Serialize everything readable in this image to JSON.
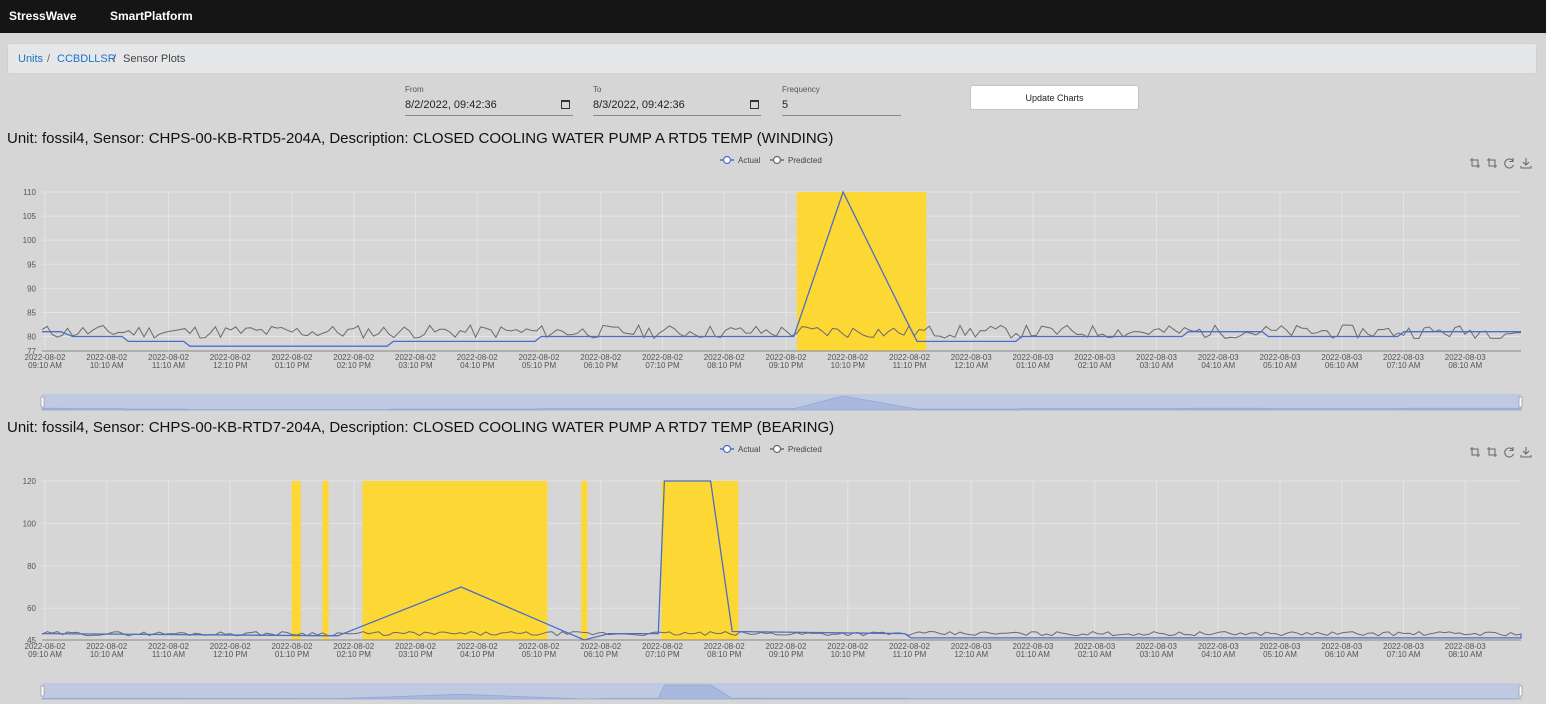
{
  "topbar": {
    "brand": "StressWave",
    "product": "SmartPlatform"
  },
  "breadcrumb": {
    "items": [
      "Units",
      "CCBDLLSR",
      "Sensor Plots"
    ],
    "separator": "/"
  },
  "form": {
    "from_label": "From",
    "from_value": "8/2/2022, 09:42:36",
    "to_label": "To",
    "to_value": "8/3/2022, 09:42:36",
    "frequency_label": "Frequency",
    "frequency_value": "5",
    "update_button": "Update Charts"
  },
  "colors": {
    "actual": "#4a6fc9",
    "predicted": "#6a6a6a",
    "highlight": "#fdd835",
    "zoom": "#b9c6e4"
  },
  "toolbox_icons": [
    "zoom-icon",
    "zoom-reset-icon",
    "restore-icon",
    "download-icon"
  ],
  "x_ticks": [
    [
      "2022-08-02",
      "09:10 AM"
    ],
    [
      "2022-08-02",
      "10:10 AM"
    ],
    [
      "2022-08-02",
      "11:10 AM"
    ],
    [
      "2022-08-02",
      "12:10 PM"
    ],
    [
      "2022-08-02",
      "01:10 PM"
    ],
    [
      "2022-08-02",
      "02:10 PM"
    ],
    [
      "2022-08-02",
      "03:10 PM"
    ],
    [
      "2022-08-02",
      "04:10 PM"
    ],
    [
      "2022-08-02",
      "05:10 PM"
    ],
    [
      "2022-08-02",
      "06:10 PM"
    ],
    [
      "2022-08-02",
      "07:10 PM"
    ],
    [
      "2022-08-02",
      "08:10 PM"
    ],
    [
      "2022-08-02",
      "09:10 PM"
    ],
    [
      "2022-08-02",
      "10:10 PM"
    ],
    [
      "2022-08-02",
      "11:10 PM"
    ],
    [
      "2022-08-03",
      "12:10 AM"
    ],
    [
      "2022-08-03",
      "01:10 AM"
    ],
    [
      "2022-08-03",
      "02:10 AM"
    ],
    [
      "2022-08-03",
      "03:10 AM"
    ],
    [
      "2022-08-03",
      "04:10 AM"
    ],
    [
      "2022-08-03",
      "05:10 AM"
    ],
    [
      "2022-08-03",
      "06:10 AM"
    ],
    [
      "2022-08-03",
      "07:10 AM"
    ],
    [
      "2022-08-03",
      "08:10 AM"
    ]
  ],
  "chart_data": [
    {
      "type": "line",
      "title": "Unit: fossil4, Sensor: CHPS-00-KB-RTD5-204A, Description: CLOSED COOLING WATER PUMP A RTD5 TEMP (WINDING)",
      "legend": [
        "Actual",
        "Predicted"
      ],
      "ylim": [
        77,
        110
      ],
      "y_ticks": [
        77,
        80,
        85,
        90,
        95,
        100,
        105,
        110
      ],
      "x_range_hours": [
        0,
        24
      ],
      "highlight_ranges": [
        [
          12.25,
          14.35
        ]
      ],
      "series": [
        {
          "name": "Actual",
          "points": [
            [
              0,
              81
            ],
            [
              0.3,
              81
            ],
            [
              0.5,
              80
            ],
            [
              1.3,
              80
            ],
            [
              1.4,
              79
            ],
            [
              2.3,
              79
            ],
            [
              2.4,
              78
            ],
            [
              5.6,
              78
            ],
            [
              5.7,
              79
            ],
            [
              8.0,
              79
            ],
            [
              8.1,
              80
            ],
            [
              12.2,
              80
            ],
            [
              13.0,
              110
            ],
            [
              14.0,
              84
            ],
            [
              14.2,
              79
            ],
            [
              15.8,
              79
            ],
            [
              15.9,
              80
            ],
            [
              18.5,
              80
            ],
            [
              18.6,
              81
            ],
            [
              19.8,
              81
            ],
            [
              19.9,
              80
            ],
            [
              22.0,
              80
            ],
            [
              22.1,
              81
            ],
            [
              24,
              81
            ]
          ]
        },
        {
          "name": "Predicted",
          "base": 81,
          "amplitude": 1.4,
          "seed": 11
        }
      ]
    },
    {
      "type": "line",
      "title": "Unit: fossil4, Sensor: CHPS-00-KB-RTD7-204A, Description: CLOSED COOLING WATER PUMP A RTD7 TEMP (BEARING)",
      "legend": [
        "Actual",
        "Predicted"
      ],
      "ylim": [
        45,
        120
      ],
      "y_ticks": [
        45,
        60,
        80,
        100,
        120
      ],
      "x_range_hours": [
        0,
        24
      ],
      "highlight_ranges": [
        [
          4.05,
          4.2
        ],
        [
          4.55,
          4.65
        ],
        [
          5.2,
          8.2
        ],
        [
          8.75,
          8.85
        ],
        [
          10.05,
          11.3
        ]
      ],
      "series": [
        {
          "name": "Actual",
          "points": [
            [
              0,
              48
            ],
            [
              4.8,
              47
            ],
            [
              6.8,
              70
            ],
            [
              8.8,
              45
            ],
            [
              9.2,
              48
            ],
            [
              10.0,
              48
            ],
            [
              10.1,
              120
            ],
            [
              10.85,
              120
            ],
            [
              11.2,
              49
            ],
            [
              14.0,
              48
            ],
            [
              14.1,
              46
            ],
            [
              24,
              46
            ],
            [
              24,
              48
            ]
          ]
        },
        {
          "name": "Predicted",
          "base": 48,
          "amplitude": 1.0,
          "seed": 29
        }
      ]
    }
  ]
}
